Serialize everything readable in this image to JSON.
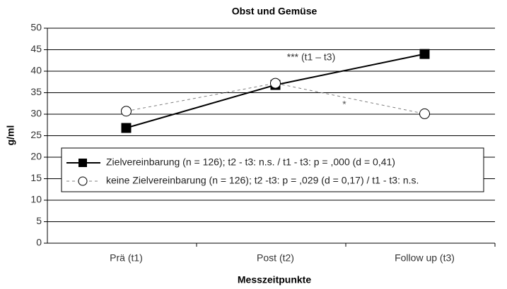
{
  "chart_data": {
    "type": "line",
    "title": "Obst und Gemüse",
    "x_label": "Messzeitpunkte",
    "y_label": "g/ml",
    "categories": [
      "Prä (t1)",
      "Post (t2)",
      "Follow up (t3)"
    ],
    "series": [
      {
        "name": "Zielvereinbarung (n = 126); t2 - t3: n.s. / t1 - t3: p = ,000 (d = 0,41)",
        "color": "#000000",
        "marker": "square",
        "dashed": false,
        "values": [
          26.8,
          36.8,
          44
        ]
      },
      {
        "name": "keine Zielvereinbarung (n = 126); t2 -t3: p = ,029 (d = 0,17) / t1 - t3: n.s.",
        "color": "#808080",
        "marker": "circle",
        "dashed": true,
        "values": [
          30.7,
          37.2,
          30.1
        ]
      }
    ],
    "annotations": [
      "*** (t1 – t3)",
      "*"
    ],
    "ylim": [
      0,
      50
    ],
    "yticks": [
      0,
      5,
      10,
      15,
      20,
      25,
      30,
      35,
      40,
      45,
      50
    ],
    "grid": true
  }
}
